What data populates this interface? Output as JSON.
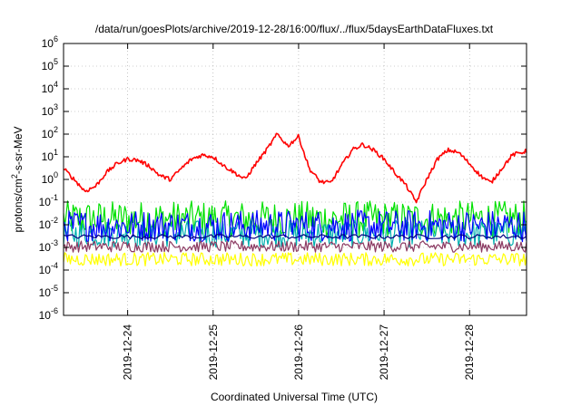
{
  "chart_data": {
    "type": "line",
    "title": "/data/run/goesPlots/archive/2019-12-28/16:00/flux/../flux/5daysEarthDataFluxes.txt",
    "xlabel": "Coordinated Universal Time (UTC)",
    "ylabel": "protons/cm²-s-sr-MeV",
    "ylabel_parts": {
      "base": "protons/cm",
      "sup": "2",
      "rest": "-s-sr-MeV"
    },
    "x_scale": "time",
    "x_range": [
      "2019-12-23T06:00",
      "2019-12-28T16:00"
    ],
    "x_ticks": [
      "2019-12-24",
      "2019-12-25",
      "2019-12-26",
      "2019-12-27",
      "2019-12-28"
    ],
    "y_scale": "log",
    "y_range": [
      1e-06,
      1000000.0
    ],
    "y_tick_exponents": [
      -6,
      -5,
      -4,
      -3,
      -2,
      -1,
      0,
      1,
      2,
      3,
      4,
      5,
      6
    ],
    "y_tick_base": "10",
    "grid": true,
    "legend": "none",
    "series": [
      {
        "color": "#ff0000",
        "style": "smooth",
        "x": [
          "2019-12-23T06:00",
          "2019-12-23T09:00",
          "2019-12-23T12:00",
          "2019-12-23T15:00",
          "2019-12-23T18:00",
          "2019-12-23T21:00",
          "2019-12-24T00:00",
          "2019-12-24T03:00",
          "2019-12-24T06:00",
          "2019-12-24T09:00",
          "2019-12-24T12:00",
          "2019-12-24T15:00",
          "2019-12-24T18:00",
          "2019-12-24T21:00",
          "2019-12-25T00:00",
          "2019-12-25T03:00",
          "2019-12-25T06:00",
          "2019-12-25T09:00",
          "2019-12-25T12:00",
          "2019-12-25T15:00",
          "2019-12-25T18:00",
          "2019-12-25T21:00",
          "2019-12-26T00:00",
          "2019-12-26T03:00",
          "2019-12-26T06:00",
          "2019-12-26T09:00",
          "2019-12-26T12:00",
          "2019-12-26T15:00",
          "2019-12-26T18:00",
          "2019-12-26T21:00",
          "2019-12-27T00:00",
          "2019-12-27T03:00",
          "2019-12-27T06:00",
          "2019-12-27T09:00",
          "2019-12-27T12:00",
          "2019-12-27T15:00",
          "2019-12-27T18:00",
          "2019-12-27T21:00",
          "2019-12-28T00:00",
          "2019-12-28T03:00",
          "2019-12-28T06:00",
          "2019-12-28T09:00",
          "2019-12-28T12:00",
          "2019-12-28T16:00"
        ],
        "values": [
          3,
          1,
          0.3,
          0.5,
          2,
          5,
          8,
          7,
          4,
          1.5,
          1,
          3,
          8,
          12,
          10,
          4,
          2,
          1,
          5,
          20,
          100,
          30,
          80,
          3,
          0.8,
          0.7,
          4,
          20,
          35,
          20,
          8,
          2,
          0.6,
          0.1,
          1,
          8,
          20,
          15,
          5,
          1.5,
          0.7,
          3,
          12,
          18
        ]
      },
      {
        "color": "#00e000",
        "style": "noisy",
        "level": 0.018,
        "spread_decades": 0.8
      },
      {
        "color": "#00b0b0",
        "style": "noisy",
        "level": 0.004,
        "spread_decades": 0.6
      },
      {
        "color": "#0000ff",
        "style": "noisy",
        "level": 0.009,
        "spread_decades": 0.7
      },
      {
        "color": "#000080",
        "style": "flat",
        "level": 0.003,
        "spread_decades": 0.1
      },
      {
        "color": "#8b3a62",
        "style": "noisy",
        "level": 0.0011,
        "spread_decades": 0.25
      },
      {
        "color": "#ffff00",
        "style": "noisy",
        "level": 0.0003,
        "spread_decades": 0.3
      }
    ]
  }
}
